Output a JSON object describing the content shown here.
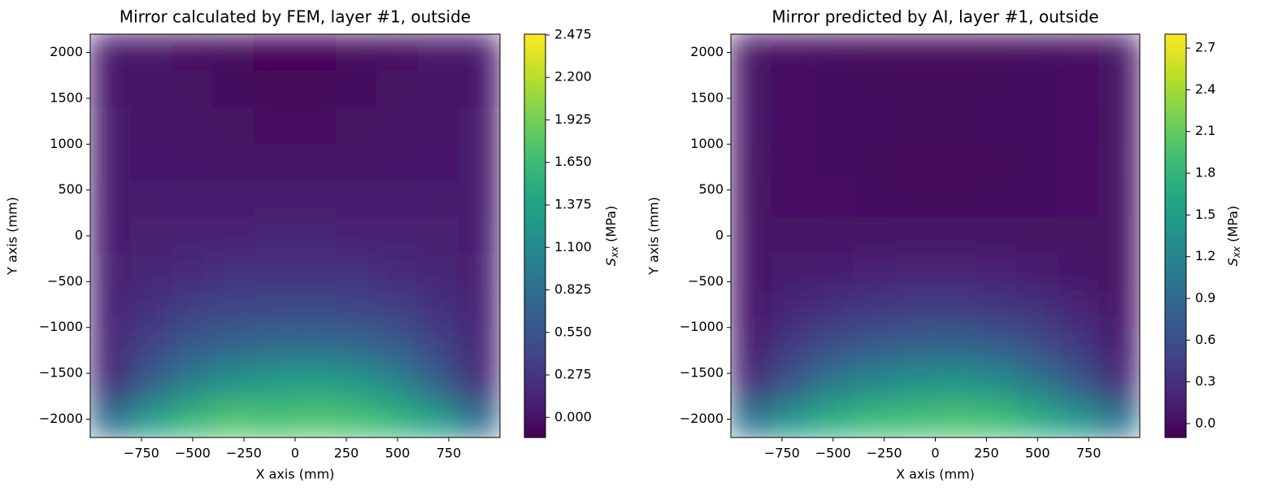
{
  "chart_data": [
    {
      "type": "heatmap",
      "title": "Mirror calculated by FEM, layer #1, outside",
      "xlabel": "X axis (mm)",
      "ylabel": "Y axis (mm)",
      "colorbar_label": {
        "symbol": "S",
        "subscript": "xx",
        "unit": "(MPa)"
      },
      "colormap": "viridis",
      "x": [
        -900,
        -700,
        -500,
        -300,
        -100,
        100,
        300,
        500,
        700,
        900
      ],
      "y": [
        2000,
        1600,
        1200,
        800,
        400,
        0,
        -400,
        -800,
        -1200,
        -1600,
        -2000
      ],
      "values": [
        [
          0.05,
          0.02,
          -0.02,
          -0.07,
          -0.1,
          -0.1,
          -0.07,
          -0.02,
          0.02,
          0.05
        ],
        [
          0.05,
          0.03,
          0.0,
          -0.05,
          -0.08,
          -0.08,
          -0.05,
          0.0,
          0.03,
          0.05
        ],
        [
          0.06,
          0.04,
          0.02,
          0.0,
          -0.03,
          -0.03,
          0.0,
          0.02,
          0.04,
          0.06
        ],
        [
          0.06,
          0.05,
          0.04,
          0.03,
          0.02,
          0.02,
          0.03,
          0.04,
          0.05,
          0.06
        ],
        [
          0.07,
          0.07,
          0.07,
          0.07,
          0.07,
          0.07,
          0.07,
          0.07,
          0.07,
          0.07
        ],
        [
          0.08,
          0.1,
          0.12,
          0.13,
          0.14,
          0.14,
          0.13,
          0.12,
          0.1,
          0.08
        ],
        [
          0.1,
          0.15,
          0.2,
          0.23,
          0.25,
          0.25,
          0.23,
          0.2,
          0.15,
          0.1
        ],
        [
          0.12,
          0.25,
          0.35,
          0.42,
          0.45,
          0.45,
          0.42,
          0.35,
          0.25,
          0.12
        ],
        [
          0.15,
          0.4,
          0.6,
          0.72,
          0.78,
          0.8,
          0.75,
          0.62,
          0.4,
          0.15
        ],
        [
          0.2,
          0.65,
          1.0,
          1.2,
          1.3,
          1.35,
          1.25,
          1.05,
          0.65,
          0.2
        ],
        [
          0.8,
          1.3,
          1.6,
          1.75,
          1.7,
          1.75,
          1.7,
          1.55,
          1.3,
          0.8
        ]
      ],
      "xlim": [
        -1000,
        1000
      ],
      "ylim": [
        -2200,
        2200
      ],
      "vlim": [
        -0.13,
        2.48
      ],
      "xticks": [
        {
          "value": -750,
          "label": "−750"
        },
        {
          "value": -500,
          "label": "−500"
        },
        {
          "value": -250,
          "label": "−250"
        },
        0,
        250,
        500,
        750
      ],
      "yticks": [
        {
          "value": -2000,
          "label": "−2000"
        },
        {
          "value": -1500,
          "label": "−1500"
        },
        {
          "value": -1000,
          "label": "−1000"
        },
        {
          "value": -500,
          "label": "−500"
        },
        0,
        500,
        1000,
        1500,
        2000
      ],
      "cticks": [
        {
          "value": 0,
          "label": "0.000"
        },
        0.275,
        {
          "value": 0.55,
          "label": "0.550"
        },
        0.825,
        {
          "value": 1.1,
          "label": "1.100"
        },
        1.375,
        {
          "value": 1.65,
          "label": "1.650"
        },
        1.925,
        {
          "value": 2.2,
          "label": "2.200"
        },
        2.475
      ]
    },
    {
      "type": "heatmap",
      "title": "Mirror predicted by AI, layer #1, outside",
      "xlabel": "X axis (mm)",
      "ylabel": "Y axis (mm)",
      "colorbar_label": {
        "symbol": "S",
        "subscript": "xx",
        "unit": "(MPa)"
      },
      "colormap": "viridis",
      "x": [
        -900,
        -700,
        -500,
        -300,
        -100,
        100,
        300,
        500,
        700,
        900
      ],
      "y": [
        2000,
        1600,
        1200,
        800,
        400,
        0,
        -400,
        -800,
        -1200,
        -1600,
        -2000
      ],
      "values": [
        [
          0.05,
          0.03,
          0.0,
          -0.03,
          -0.05,
          -0.05,
          -0.03,
          0.0,
          0.03,
          0.05
        ],
        [
          0.06,
          0.03,
          0.0,
          -0.02,
          -0.02,
          -0.02,
          -0.02,
          0.0,
          0.03,
          0.05
        ],
        [
          0.07,
          0.03,
          0.0,
          -0.01,
          -0.02,
          -0.02,
          -0.01,
          0.0,
          0.02,
          0.05
        ],
        [
          0.05,
          0.02,
          0.0,
          -0.02,
          -0.04,
          -0.04,
          -0.03,
          0.0,
          0.03,
          0.06
        ],
        [
          0.05,
          0.03,
          0.01,
          -0.01,
          -0.03,
          -0.03,
          -0.02,
          0.0,
          0.03,
          0.05
        ],
        [
          0.06,
          0.06,
          0.06,
          0.06,
          0.06,
          0.06,
          0.06,
          0.05,
          0.04,
          0.04
        ],
        [
          0.08,
          0.12,
          0.15,
          0.18,
          0.2,
          0.2,
          0.18,
          0.14,
          0.1,
          0.04
        ],
        [
          0.1,
          0.22,
          0.32,
          0.38,
          0.42,
          0.42,
          0.38,
          0.3,
          0.2,
          0.08
        ],
        [
          0.15,
          0.4,
          0.6,
          0.72,
          0.8,
          0.82,
          0.75,
          0.6,
          0.38,
          0.15
        ],
        [
          0.25,
          0.7,
          1.05,
          1.25,
          1.35,
          1.4,
          1.3,
          1.05,
          0.7,
          0.25
        ],
        [
          1.0,
          1.4,
          1.7,
          1.85,
          1.9,
          1.95,
          1.9,
          1.7,
          1.4,
          1.0
        ]
      ],
      "xlim": [
        -1000,
        1000
      ],
      "ylim": [
        -2200,
        2200
      ],
      "vlim": [
        -0.1,
        2.8
      ],
      "xticks": [
        {
          "value": -750,
          "label": "−750"
        },
        {
          "value": -500,
          "label": "−500"
        },
        {
          "value": -250,
          "label": "−250"
        },
        0,
        250,
        500,
        750
      ],
      "yticks": [
        {
          "value": -2000,
          "label": "−2000"
        },
        {
          "value": -1500,
          "label": "−1500"
        },
        {
          "value": -1000,
          "label": "−1000"
        },
        {
          "value": -500,
          "label": "−500"
        },
        0,
        500,
        1000,
        1500,
        2000
      ],
      "cticks": [
        {
          "value": 0,
          "label": "0.0"
        },
        0.3,
        0.6,
        0.9,
        1.2,
        1.5,
        1.8,
        2.1,
        2.4,
        2.7
      ]
    }
  ]
}
